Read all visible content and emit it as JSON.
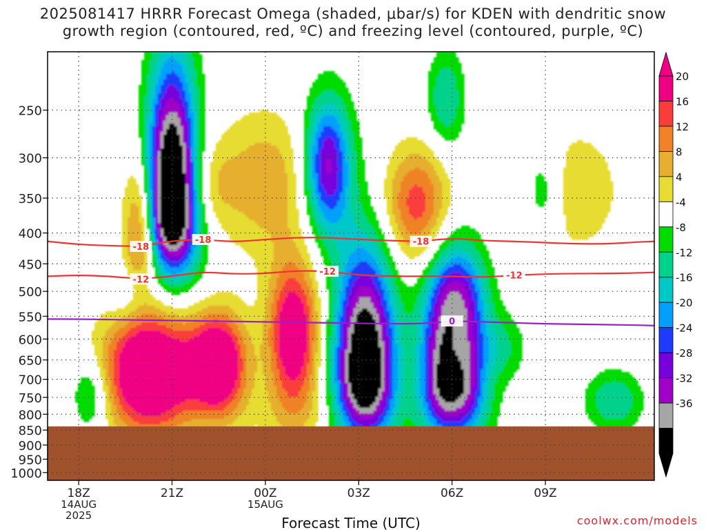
{
  "title_line1": "2025081417 HRRR Forecast Omega (shaded, μbar/s) for KDEN with dendritic snow",
  "title_line2": "growth region (contoured, red, ºC) and freezing level (contoured, purple, ºC)",
  "credit": "coolwx.com/models",
  "chart_data": {
    "type": "heatmap",
    "title": "2025081417 HRRR Forecast Omega (shaded, μbar/s) for KDEN with dendritic snow growth region (contoured, red, ºC) and freezing level (contoured, purple, ºC)",
    "xlabel": "Forecast Time (UTC)",
    "ylabel": "",
    "x_range_hours": [
      17,
      36.5
    ],
    "x_ticks": [
      {
        "hour": 18,
        "lines": [
          "18Z",
          "14AUG",
          "2025"
        ]
      },
      {
        "hour": 21,
        "lines": [
          "21Z"
        ]
      },
      {
        "hour": 24,
        "lines": [
          "00Z",
          "15AUG"
        ]
      },
      {
        "hour": 27,
        "lines": [
          "03Z"
        ]
      },
      {
        "hour": 30,
        "lines": [
          "06Z"
        ]
      },
      {
        "hour": 33,
        "lines": [
          "09Z"
        ]
      }
    ],
    "y_ticks": [
      250,
      300,
      350,
      400,
      450,
      500,
      550,
      600,
      650,
      700,
      750,
      800,
      850,
      900,
      950,
      1000
    ],
    "y_range_hpa": [
      200,
      1030
    ],
    "y_scale": "log-pressure",
    "surface_pressure_hpa": 838,
    "grid": true,
    "colorbar": {
      "labels": [
        "20",
        "16",
        "12",
        "8",
        "4",
        "-4",
        "-8",
        "-12",
        "-16",
        "-20",
        "-24",
        "-28",
        "-32",
        "-36"
      ],
      "bounds": [
        -36,
        -32,
        -28,
        -24,
        -20,
        -16,
        -12,
        -8,
        -4,
        4,
        8,
        12,
        16,
        20
      ],
      "colors": [
        "#000000",
        "#a6a6a6",
        "#a000c8",
        "#7800dc",
        "#1e3cff",
        "#00a0ff",
        "#00c8c8",
        "#00d28c",
        "#00dc00",
        "#ffffff",
        "#e6dc32",
        "#e6af2d",
        "#f08228",
        "#fa3c3c",
        "#f00082"
      ],
      "below_color": "#000000",
      "above_color": "#f00082"
    },
    "omega_features": [
      {
        "t": 20.0,
        "p": 420,
        "wt": 0.55,
        "wp": 0.55,
        "peak": 20,
        "shape": "drop"
      },
      {
        "t": 21.0,
        "p": 360,
        "wt": 0.8,
        "wp": 0.95,
        "peak": -52,
        "shape": "drop"
      },
      {
        "t": 20.3,
        "p": 680,
        "wt": 1.5,
        "wp": 0.75,
        "peak": 34,
        "shape": "blob"
      },
      {
        "t": 22.5,
        "p": 660,
        "wt": 0.9,
        "wp": 0.6,
        "peak": 30,
        "shape": "blob"
      },
      {
        "t": 24.0,
        "p": 330,
        "wt": 1.6,
        "wp": 0.9,
        "peak": 11,
        "shape": "blob"
      },
      {
        "t": 22.2,
        "p": 330,
        "wt": 0.8,
        "wp": 0.5,
        "peak": 6,
        "shape": "blob"
      },
      {
        "t": 24.9,
        "p": 590,
        "wt": 0.8,
        "wp": 0.9,
        "peak": 28,
        "shape": "blob"
      },
      {
        "t": 26.0,
        "p": 310,
        "wt": 0.75,
        "wp": 0.85,
        "peak": -30,
        "shape": "blob"
      },
      {
        "t": 27.2,
        "p": 700,
        "wt": 0.95,
        "wp": 0.85,
        "peak": -50,
        "shape": "drop"
      },
      {
        "t": 28.9,
        "p": 360,
        "wt": 1.1,
        "wp": 0.7,
        "peak": 19,
        "shape": "blob"
      },
      {
        "t": 30.0,
        "p": 700,
        "wt": 0.95,
        "wp": 0.75,
        "peak": -48,
        "shape": "drop"
      },
      {
        "t": 30.1,
        "p": 640,
        "wt": 0.4,
        "wp": 0.55,
        "peak": 10,
        "shape": "blob"
      },
      {
        "t": 29.8,
        "p": 240,
        "wt": 0.6,
        "wp": 0.6,
        "peak": -12,
        "shape": "blob"
      },
      {
        "t": 30.3,
        "p": 500,
        "wt": 0.9,
        "wp": 0.5,
        "peak": -9,
        "shape": "blob"
      },
      {
        "t": 34.0,
        "p": 340,
        "wt": 1.8,
        "wp": 1.0,
        "peak": 6,
        "shape": "blob"
      },
      {
        "t": 32.9,
        "p": 340,
        "wt": 0.55,
        "wp": 0.55,
        "peak": -9,
        "shape": "blob"
      },
      {
        "t": 31.6,
        "p": 620,
        "wt": 0.8,
        "wp": 0.4,
        "peak": -8,
        "shape": "blob"
      },
      {
        "t": 35.2,
        "p": 760,
        "wt": 0.9,
        "wp": 0.35,
        "peak": -12,
        "shape": "blob"
      },
      {
        "t": 18.4,
        "p": 740,
        "wt": 0.6,
        "wp": 0.45,
        "peak": -12,
        "shape": "blob"
      },
      {
        "t": 19.5,
        "p": 500,
        "wt": 0.6,
        "wp": 0.4,
        "peak": -6,
        "shape": "blob"
      },
      {
        "t": 26.2,
        "p": 800,
        "wt": 3.0,
        "wp": 0.4,
        "peak": 5,
        "shape": "blob"
      }
    ],
    "contours": [
      {
        "name": "-18",
        "label": "-18",
        "color": "#ee3333",
        "points": [
          [
            17.0,
            413
          ],
          [
            18.0,
            418
          ],
          [
            19.0,
            420
          ],
          [
            20.0,
            421
          ],
          [
            21.0,
            412
          ],
          [
            22.0,
            410
          ],
          [
            23.0,
            414
          ],
          [
            24.0,
            410
          ],
          [
            25.0,
            407
          ],
          [
            26.0,
            407
          ],
          [
            27.0,
            410
          ],
          [
            28.0,
            412
          ],
          [
            29.0,
            413
          ],
          [
            30.0,
            408
          ],
          [
            31.0,
            412
          ],
          [
            32.0,
            413
          ],
          [
            33.0,
            415
          ],
          [
            34.0,
            417
          ],
          [
            35.0,
            417
          ],
          [
            36.0,
            414
          ],
          [
            36.5,
            413
          ]
        ],
        "label_at_hours": [
          20.0,
          22.0,
          29.0
        ]
      },
      {
        "name": "-12",
        "label": "-12",
        "color": "#ee3333",
        "points": [
          [
            17.0,
            472
          ],
          [
            18.0,
            470
          ],
          [
            19.0,
            472
          ],
          [
            20.0,
            477
          ],
          [
            21.0,
            472
          ],
          [
            22.0,
            464
          ],
          [
            23.0,
            468
          ],
          [
            24.0,
            467
          ],
          [
            25.0,
            462
          ],
          [
            26.0,
            463
          ],
          [
            27.0,
            470
          ],
          [
            28.0,
            472
          ],
          [
            29.0,
            472
          ],
          [
            30.0,
            472
          ],
          [
            31.0,
            474
          ],
          [
            32.0,
            470
          ],
          [
            33.0,
            468
          ],
          [
            34.0,
            467
          ],
          [
            35.0,
            467
          ],
          [
            36.0,
            466
          ],
          [
            36.5,
            465
          ]
        ],
        "label_at_hours": [
          20.0,
          26.0,
          32.0
        ]
      },
      {
        "name": "0",
        "label": "0",
        "color": "#9a1fc8",
        "points": [
          [
            17.0,
            556
          ],
          [
            18.0,
            556
          ],
          [
            19.0,
            557
          ],
          [
            20.0,
            558
          ],
          [
            21.0,
            559
          ],
          [
            22.0,
            560
          ],
          [
            23.0,
            561
          ],
          [
            24.0,
            562
          ],
          [
            25.0,
            563
          ],
          [
            26.0,
            564
          ],
          [
            27.0,
            565
          ],
          [
            28.0,
            566
          ],
          [
            29.0,
            566
          ],
          [
            30.0,
            560
          ],
          [
            31.0,
            562
          ],
          [
            32.0,
            564
          ],
          [
            33.0,
            566
          ],
          [
            34.0,
            567
          ],
          [
            35.0,
            568
          ],
          [
            36.0,
            569
          ],
          [
            36.5,
            570
          ]
        ],
        "label_at_hours": [
          30.0
        ]
      }
    ]
  }
}
